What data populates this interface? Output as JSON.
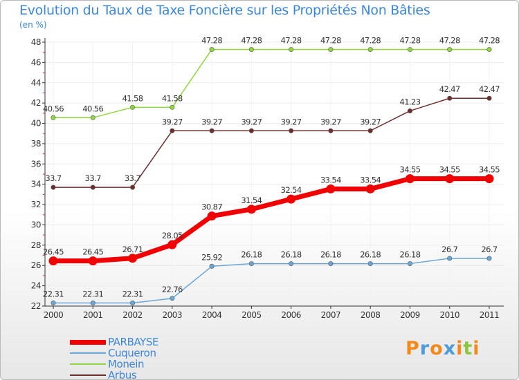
{
  "chart_data": {
    "type": "line",
    "title": "Evolution du Taux de Taxe Foncière sur les Propriétés Non Bâties",
    "subtitle": "(en %)",
    "ylim": [
      22,
      48
    ],
    "yticks": [
      "22",
      "24",
      "26",
      "28",
      "30",
      "32",
      "34",
      "36",
      "38",
      "40",
      "42",
      "44",
      "46",
      "48"
    ],
    "categories": [
      "2000",
      "2001",
      "2002",
      "2003",
      "2004",
      "2005",
      "2006",
      "2007",
      "2008",
      "2009",
      "2010",
      "2011"
    ],
    "series": [
      {
        "name": "PARBAYSE",
        "color": "#f00000",
        "values": [
          26.45,
          26.45,
          26.71,
          28.05,
          30.87,
          31.54,
          32.54,
          33.54,
          33.54,
          34.55,
          34.55,
          34.55
        ],
        "labels": [
          "26.45",
          "26.45",
          "26.71",
          "28.05",
          "30.87",
          "31.54",
          "32.54",
          "33.54",
          "33.54",
          "34.55",
          "34.55",
          "34.55"
        ]
      },
      {
        "name": "Cuqueron",
        "color": "#6aa6d6",
        "values": [
          22.31,
          22.31,
          22.31,
          22.76,
          25.92,
          26.18,
          26.18,
          26.18,
          26.18,
          26.18,
          26.7,
          26.7
        ],
        "labels": [
          "22.31",
          "22.31",
          "22.31",
          "22.76",
          "25.92",
          "26.18",
          "26.18",
          "26.18",
          "26.18",
          "26.18",
          "26.7",
          "26.7"
        ]
      },
      {
        "name": "Monein",
        "color": "#8fd640",
        "values": [
          40.56,
          40.56,
          41.58,
          41.58,
          47.28,
          47.28,
          47.28,
          47.28,
          47.28,
          47.28,
          47.28,
          47.28
        ],
        "labels": [
          "40.56",
          "40.56",
          "41.58",
          "41.58",
          "47.28",
          "47.28",
          "47.28",
          "47.28",
          "47.28",
          "47.28",
          "47.28",
          "47.28"
        ]
      },
      {
        "name": "Arbus",
        "color": "#6e2d2d",
        "values": [
          33.7,
          33.7,
          33.7,
          39.27,
          39.27,
          39.27,
          39.27,
          39.27,
          39.27,
          41.23,
          42.47,
          42.47
        ],
        "labels": [
          "33.7",
          "33.7",
          "33.7",
          "39.27",
          "39.27",
          "39.27",
          "39.27",
          "39.27",
          "39.27",
          "41.23",
          "42.47",
          "42.47"
        ]
      }
    ],
    "legend_position": "bottom-left"
  },
  "logo": {
    "letters": [
      {
        "char": "P",
        "color": "#f08a1c"
      },
      {
        "char": "r",
        "color": "#4f9ad8"
      },
      {
        "char": "o",
        "color": "#f08a1c"
      },
      {
        "char": "x",
        "color": "#4f9ad8"
      },
      {
        "char": "i",
        "color": "#f08a1c"
      },
      {
        "char": "t",
        "color": "#8cc63f"
      },
      {
        "char": "i",
        "color": "#f08a1c"
      }
    ]
  }
}
